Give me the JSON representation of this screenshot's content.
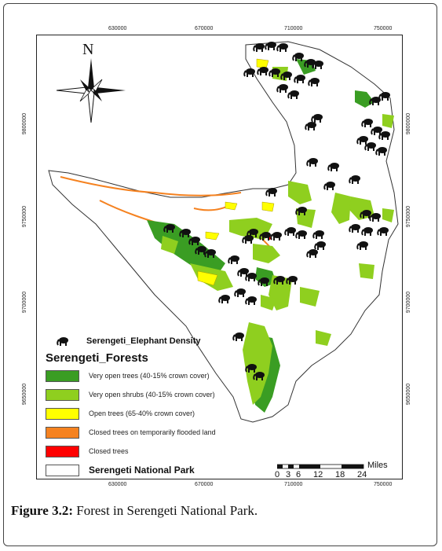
{
  "map": {
    "north_label": "N",
    "x_ticks_top": [
      "630000",
      "670000",
      "710000",
      "750000"
    ],
    "x_ticks_bottom": [
      "630000",
      "670000",
      "710000",
      "750000"
    ],
    "y_ticks_left": [
      "9800000",
      "9750000",
      "9700000",
      "9650000"
    ],
    "y_ticks_right": [
      "9800000",
      "9750000",
      "9700000",
      "9650000"
    ],
    "scale": {
      "unit": "Miles",
      "ticks": [
        "0",
        "3",
        "6",
        "12",
        "18",
        "24"
      ]
    }
  },
  "legend": {
    "elephant_label": "Serengeti_Elephant Density",
    "forests_title": "Serengeti_Forests",
    "items": [
      {
        "label": "Very open trees (40-15% crown cover)",
        "color": "#3a9d23"
      },
      {
        "label": "Very open shrubs (40-15% crown cover)",
        "color": "#8fcf1f"
      },
      {
        "label": "Open trees (65-40% crown cover)",
        "color": "#ffff00"
      },
      {
        "label": "Closed trees on temporarily flooded land",
        "color": "#f58220"
      },
      {
        "label": "Closed trees",
        "color": "#ff0000"
      }
    ],
    "park_label": "Serengeti National Park"
  },
  "caption": {
    "prefix": "Figure 3.2:",
    "text": " Forest in Serengeti National Park."
  }
}
